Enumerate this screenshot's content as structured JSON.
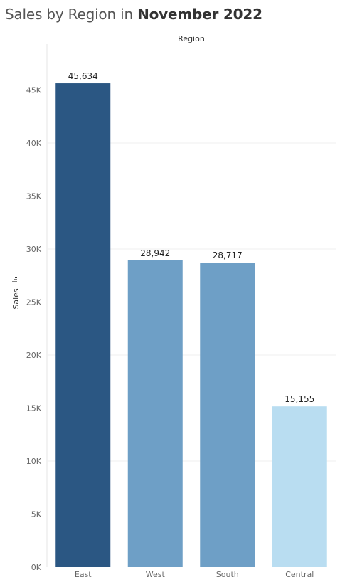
{
  "title": {
    "prefix": "Sales by Region in ",
    "emphasis": "November 2022"
  },
  "chart_data": {
    "type": "bar",
    "title": "Sales by Region in November 2022",
    "column_header": "Region",
    "xlabel": "",
    "ylabel": "Sales",
    "categories": [
      "East",
      "West",
      "South",
      "Central"
    ],
    "values": [
      45634,
      28942,
      28717,
      15155
    ],
    "data_labels": [
      "45,634",
      "28,942",
      "28,717",
      "15,155"
    ],
    "bar_colors": [
      "#2b5783",
      "#6e9fc6",
      "#6e9fc6",
      "#b9ddf1"
    ],
    "ylim": [
      0,
      48000
    ],
    "yticks": [
      0,
      5000,
      10000,
      15000,
      20000,
      25000,
      30000,
      35000,
      40000,
      45000
    ],
    "ytick_labels": [
      "0K",
      "5K",
      "10K",
      "15K",
      "20K",
      "25K",
      "30K",
      "35K",
      "40K",
      "45K"
    ],
    "grid": true,
    "legend": "none"
  }
}
